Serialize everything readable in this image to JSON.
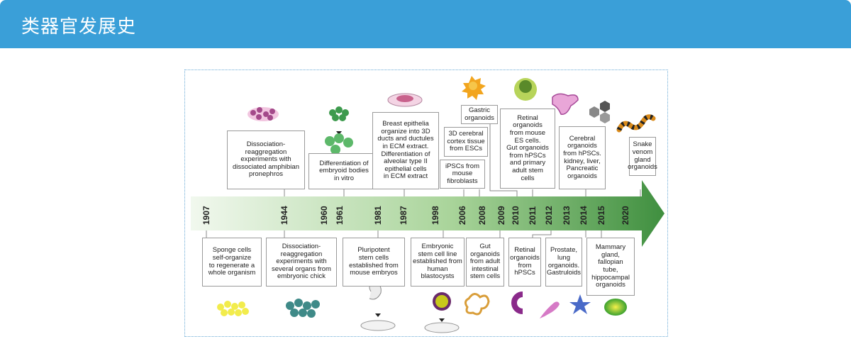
{
  "header": {
    "title": "类器官发展史"
  },
  "years": [
    "1907",
    "1944",
    "1960",
    "1961",
    "1981",
    "1987",
    "1998",
    "2006",
    "2008",
    "2009",
    "2010",
    "2011",
    "2012",
    "2013",
    "2014",
    "2015",
    "2020"
  ],
  "top_events": [
    "Dissociation-\nreaggregation\nexperiments with\ndissociated amphibian\npronephros",
    "Differentiation of\nembryoid bodies\nin vitro",
    "Breast epithelia\norganize into 3D\nducts and ductules\nin ECM extract.\nDifferentiation of\nalveolar type II\nepithelial cells\nin ECM extract",
    "3D cerebral\ncortex tissue\nfrom ESCs",
    "iPSCs from\nmouse\nfibroblasts",
    "Gastric\norganoids",
    "Retinal\norganoids\nfrom mouse\nES cells.\nGut organoids\nfrom hPSCs\nand primary\nadult stem\ncells",
    "Cerebral\norganoids\nfrom hPSCs.\nkidney, liver,\nPancreatic\norganoids",
    "Snake\nvenom\ngland\norganoids"
  ],
  "bottom_events": [
    "Sponge cells\nself-organize\nto regenerate a\nwhole organism",
    "Dissociation-\nreaggregation\nexperiments with\nseveral organs from\nembryonic chick",
    "Pluripotent\nstem cells\nestablished from\nmouse embryos",
    "Embryonic\nstem cell line\nestablished from\nhuman\nblastocysts",
    "Gut\norganoids\nfrom adult\nintestinal\nstem cells",
    "Retinal\norganoids\nfrom\nhPSCs",
    "Prostate,\nlung\norganoids.\nGastruloids",
    "Mammary\ngland,\nfallopian\ntube,\nhippocampal\norganoids"
  ],
  "colors": {
    "header": "#3a9fd8",
    "arrow_start": "#f0f7ec",
    "arrow_end": "#3f8f3f"
  }
}
